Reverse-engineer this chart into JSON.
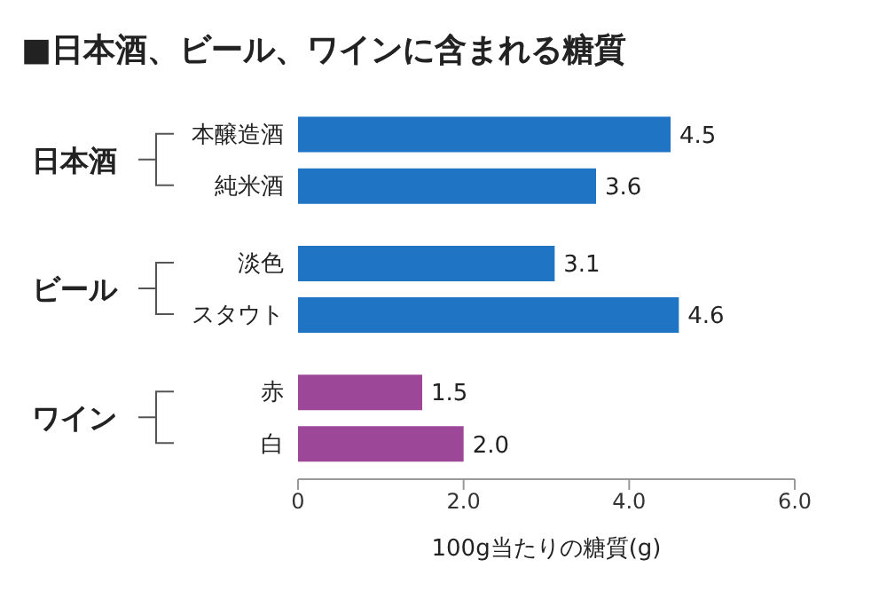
{
  "chart_data": {
    "type": "bar",
    "orientation": "horizontal",
    "title": "■日本酒、ビール、ワインに含まれる糖質",
    "xlabel": "100g当たりの糖質(g)",
    "categories": [
      "本醸造酒",
      "純米酒",
      "淡色",
      "スタウト",
      "赤",
      "白"
    ],
    "values": [
      4.5,
      3.6,
      3.1,
      4.6,
      1.5,
      2.0
    ],
    "colors": [
      "#1f74c4",
      "#1f74c4",
      "#1f74c4",
      "#1f74c4",
      "#9c4797",
      "#9c4797"
    ],
    "value_labels": [
      "4.5",
      "3.6",
      "3.1",
      "4.6",
      "1.5",
      "2.0"
    ],
    "annotations": [
      "日本酒",
      "ビール",
      "ワイン"
    ],
    "xlim": [
      0,
      6
    ],
    "xticks": [
      0,
      {
        "value": 2,
        "label": "2.0"
      },
      {
        "value": 4,
        "label": "4.0"
      },
      {
        "value": 6,
        "label": "6.0"
      }
    ],
    "grid": false,
    "legend": false
  }
}
